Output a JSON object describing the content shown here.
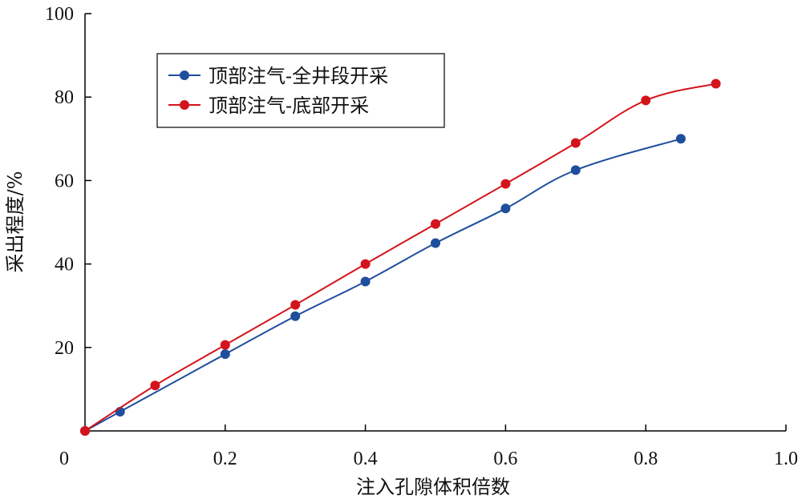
{
  "chart_data": {
    "type": "line",
    "xlabel": "注入孔隙体积倍数",
    "ylabel": "采出程度/%",
    "xlim": [
      0,
      1.0
    ],
    "ylim": [
      0,
      100
    ],
    "x_ticks": [
      "0",
      "0.2",
      "0.4",
      "0.6",
      "0.8",
      "1.0"
    ],
    "y_ticks": [
      "20",
      "40",
      "60",
      "80",
      "100"
    ],
    "grid": false,
    "legend_position": "top-left",
    "series": [
      {
        "name": "顶部注气-全井段开采",
        "color": "#1f4e9c",
        "x": [
          0.0,
          0.05,
          0.2,
          0.3,
          0.4,
          0.5,
          0.6,
          0.7,
          0.85
        ],
        "y": [
          0.0,
          4.6,
          18.4,
          27.5,
          35.8,
          45.0,
          53.3,
          62.5,
          70.0
        ]
      },
      {
        "name": "顶部注气-底部开采",
        "color": "#d4141c",
        "x": [
          0.0,
          0.1,
          0.2,
          0.3,
          0.4,
          0.5,
          0.6,
          0.7,
          0.8,
          0.9
        ],
        "y": [
          0.0,
          10.9,
          20.6,
          30.2,
          40.0,
          49.6,
          59.2,
          69.0,
          79.2,
          83.2
        ]
      }
    ]
  }
}
